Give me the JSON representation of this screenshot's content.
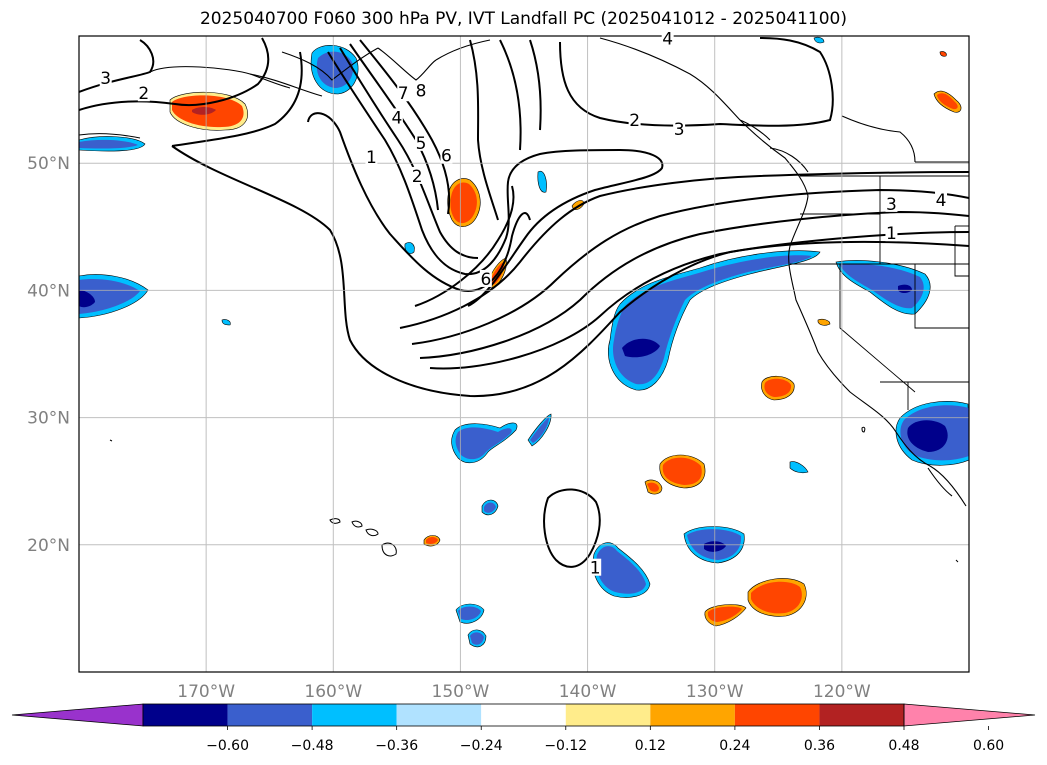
{
  "title": "2025040700 F060 300 hPa PV, IVT Landfall PC (2025041012 - 2025041100)",
  "map": {
    "lon_range": [
      -180,
      -110
    ],
    "lat_range": [
      10,
      60
    ],
    "lon_ticks": [
      {
        "value": -170,
        "label": "170°W"
      },
      {
        "value": -160,
        "label": "160°W"
      },
      {
        "value": -150,
        "label": "150°W"
      },
      {
        "value": -140,
        "label": "140°W"
      },
      {
        "value": -130,
        "label": "130°W"
      },
      {
        "value": -120,
        "label": "120°W"
      }
    ],
    "lat_ticks": [
      {
        "value": 50,
        "label": "50°N"
      },
      {
        "value": 40,
        "label": "40°N"
      },
      {
        "value": 30,
        "label": "30°N"
      },
      {
        "value": 20,
        "label": "20°N"
      }
    ],
    "grid": true,
    "tick_label_color": "#808080",
    "coastline_color": "#000000"
  },
  "contour_labels": [
    {
      "text": "3",
      "lon": -177.9,
      "lat": 56.7
    },
    {
      "text": "2",
      "lon": -174.9,
      "lat": 55.5
    },
    {
      "text": "1",
      "lon": -157.0,
      "lat": 50.5
    },
    {
      "text": "2",
      "lon": -153.4,
      "lat": 49.0
    },
    {
      "text": "4",
      "lon": -155.0,
      "lat": 53.6
    },
    {
      "text": "5",
      "lon": -153.1,
      "lat": 51.6
    },
    {
      "text": "6",
      "lon": -151.1,
      "lat": 50.6
    },
    {
      "text": "7",
      "lon": -154.5,
      "lat": 55.5
    },
    {
      "text": "8",
      "lon": -153.1,
      "lat": 55.7
    },
    {
      "text": "6",
      "lon": -148.0,
      "lat": 40.9
    },
    {
      "text": "2",
      "lon": -136.3,
      "lat": 53.4
    },
    {
      "text": "3",
      "lon": -132.8,
      "lat": 52.7
    },
    {
      "text": "4",
      "lon": -133.7,
      "lat": 59.8
    },
    {
      "text": "3",
      "lon": -116.1,
      "lat": 46.8
    },
    {
      "text": "4",
      "lon": -112.2,
      "lat": 47.1
    },
    {
      "text": "1",
      "lon": -116.1,
      "lat": 44.5
    },
    {
      "text": "1",
      "lon": -139.4,
      "lat": 18.2
    }
  ],
  "colorbar": {
    "colors": [
      "#9932cc",
      "#00008b",
      "#3a5fcd",
      "#00bfff",
      "#b0e2ff",
      "#ffffff",
      "#ffec8b",
      "#ffa500",
      "#ff4500",
      "#b22222",
      "#ff82ab"
    ],
    "tick_labels": [
      "−0.60",
      "−0.48",
      "−0.36",
      "−0.24",
      "−0.12",
      "0.12",
      "0.24",
      "0.36",
      "0.48",
      "0.60"
    ],
    "extend": "both"
  }
}
